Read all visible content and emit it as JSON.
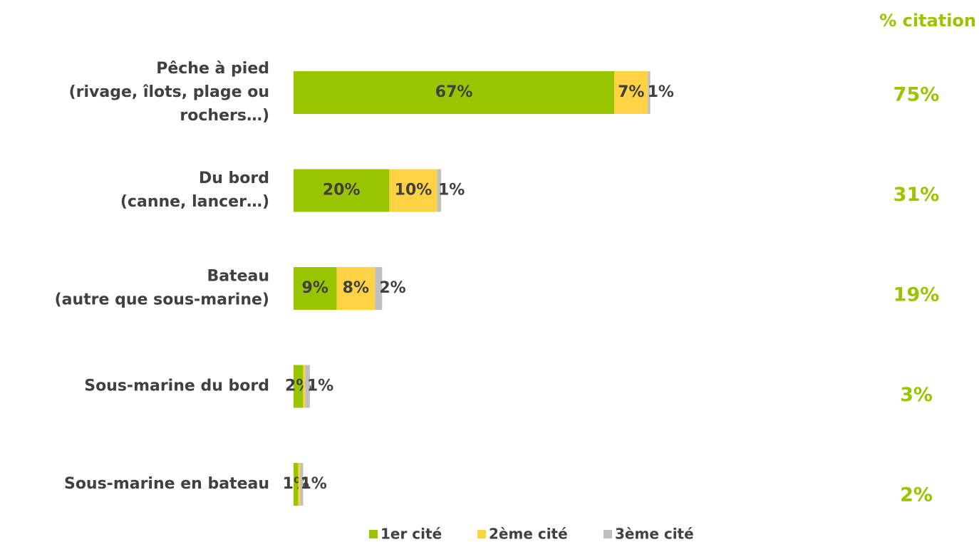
{
  "chart_data": {
    "type": "stacked-bar-horizontal",
    "total_title": "% citation",
    "categories": [
      [
        "Pêche à pied",
        "(rivage, îlots, plage ou",
        "rochers…)"
      ],
      [
        "Du bord",
        "(canne, lancer…)"
      ],
      [
        "Bateau",
        "(autre que sous-marine)"
      ],
      [
        "Sous-marine du bord"
      ],
      [
        "Sous-marine en bateau"
      ]
    ],
    "series": [
      {
        "name": "1er cité",
        "color": "#99c400",
        "values": [
          67,
          20,
          9,
          2,
          1
        ],
        "value_labels": [
          "67%",
          "20%",
          "9%",
          "2%",
          "1%"
        ]
      },
      {
        "name": "2ème cité",
        "color": "#ffd246",
        "values": [
          7,
          10,
          8,
          0.4,
          0.4
        ],
        "value_labels": [
          "7%",
          "10%",
          "8%",
          null,
          null
        ]
      },
      {
        "name": "3ème cité",
        "color": "#bfbfbf",
        "values": [
          0.5,
          0.8,
          1.5,
          1,
          0.6
        ],
        "value_labels": [
          "1%",
          "1%",
          "2%",
          "1%",
          "1%"
        ]
      }
    ],
    "totals": [
      75,
      31,
      19,
      3,
      2
    ],
    "total_labels": [
      "75%",
      "31%",
      "19%",
      "3%",
      "2%"
    ],
    "xlim": [
      0,
      100
    ]
  }
}
